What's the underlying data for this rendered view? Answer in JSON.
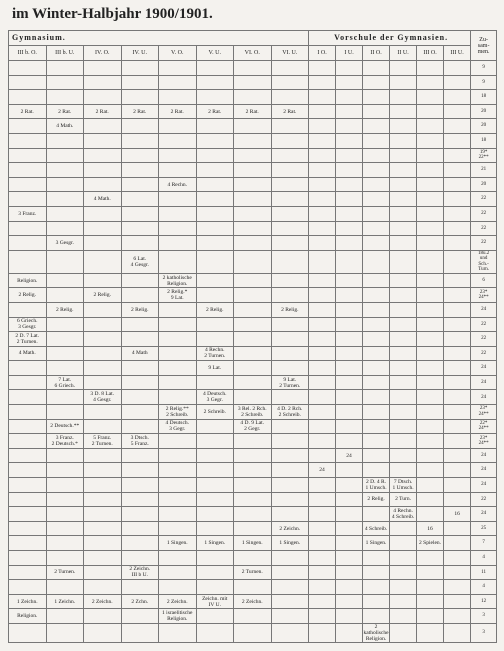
{
  "header": {
    "title": "im Winter-Halbjahr 1900/1901."
  },
  "groups": {
    "gymnasium": "Gymnasium.",
    "vorschule": "Vorschule der Gymnasien.",
    "total": "Zu-\nsam-\nmen."
  },
  "columns": [
    "III b. O.",
    "III b. U.",
    "IV. O.",
    "IV. U.",
    "V. O.",
    "V. U.",
    "VI. O.",
    "VI. U.",
    "I O.",
    "I U.",
    "II O.",
    "II U.",
    "III O.",
    "III U."
  ],
  "rows": [
    {
      "cells": [
        null,
        null,
        null,
        null,
        null,
        null,
        null,
        null,
        null,
        null,
        null,
        null,
        null,
        null
      ],
      "total": "9"
    },
    {
      "cells": [
        null,
        null,
        null,
        null,
        null,
        null,
        null,
        null,
        null,
        null,
        null,
        null,
        null,
        null
      ],
      "total": "9"
    },
    {
      "cells": [
        null,
        null,
        null,
        null,
        null,
        null,
        null,
        null,
        null,
        null,
        null,
        null,
        null,
        null
      ],
      "total": "18"
    },
    {
      "cells": [
        "2 Rat.",
        "2 Rat.",
        "2 Rat.",
        "2 Rat.",
        "2 Rat.",
        "2 Rat.",
        "2 Rat.",
        "2 Rat.",
        null,
        null,
        null,
        null,
        null,
        null
      ],
      "total": "20"
    },
    {
      "cells": [
        null,
        "4 Math.",
        null,
        null,
        null,
        null,
        null,
        null,
        null,
        null,
        null,
        null,
        null,
        null
      ],
      "total": "20"
    },
    {
      "cells": [
        null,
        null,
        null,
        null,
        null,
        null,
        null,
        null,
        null,
        null,
        null,
        null,
        null,
        null
      ],
      "total": "18"
    },
    {
      "cells": [
        null,
        null,
        null,
        null,
        null,
        null,
        null,
        null,
        null,
        null,
        null,
        null,
        null,
        null
      ],
      "total": "19*\n22**"
    },
    {
      "cells": [
        null,
        null,
        null,
        null,
        null,
        null,
        null,
        null,
        null,
        null,
        null,
        null,
        null,
        null
      ],
      "total": "21"
    },
    {
      "cells": [
        null,
        null,
        null,
        null,
        "4 Rechn.",
        null,
        null,
        null,
        null,
        null,
        null,
        null,
        null,
        null
      ],
      "total": "20"
    },
    {
      "cells": [
        null,
        null,
        "4 Math.",
        null,
        null,
        null,
        null,
        null,
        null,
        null,
        null,
        null,
        null,
        null
      ],
      "total": "22"
    },
    {
      "cells": [
        "3 Franz.",
        null,
        null,
        null,
        null,
        null,
        null,
        null,
        null,
        null,
        null,
        null,
        null,
        null
      ],
      "total": "22"
    },
    {
      "cells": [
        null,
        null,
        null,
        null,
        null,
        null,
        null,
        null,
        null,
        null,
        null,
        null,
        null,
        null
      ],
      "total": "22"
    },
    {
      "cells": [
        null,
        "3 Gesgr.",
        null,
        null,
        null,
        null,
        null,
        null,
        null,
        null,
        null,
        null,
        null,
        null
      ],
      "total": "22"
    },
    {
      "cells": [
        null,
        null,
        null,
        "6 Lat.\n4 Gesgr.",
        null,
        null,
        null,
        null,
        null,
        null,
        null,
        null,
        null,
        null
      ],
      "total": "18u.2\nund\nSch.-\nTurn."
    },
    {
      "cells": [
        "Religion.",
        null,
        null,
        null,
        "2 katholische Religion.",
        null,
        null,
        null,
        null,
        null,
        null,
        null,
        null,
        null
      ],
      "total": "6"
    },
    {
      "cells": [
        "2 Relig.",
        null,
        "2 Relig.",
        null,
        "2 Relig.*\n9 Lat.",
        null,
        null,
        null,
        null,
        null,
        null,
        null,
        null,
        null
      ],
      "total": "23*\n24**"
    },
    {
      "cells": [
        null,
        "2 Relig.",
        null,
        "2 Relig.",
        null,
        "2 Relig.",
        null,
        "2 Relig.",
        null,
        null,
        null,
        null,
        null,
        null
      ],
      "total": "24"
    },
    {
      "cells": [
        "6 Griech.\n3 Gesgr.",
        null,
        null,
        null,
        null,
        null,
        null,
        null,
        null,
        null,
        null,
        null,
        null,
        null
      ],
      "total": "22"
    },
    {
      "cells": [
        "2 D. 7 Lat.\n2 Turnen.",
        null,
        null,
        null,
        null,
        null,
        null,
        null,
        null,
        null,
        null,
        null,
        null,
        null
      ],
      "total": "22"
    },
    {
      "cells": [
        "4 Math.",
        null,
        null,
        "4 Math",
        null,
        "4 Rechn.\n2 Turnen.",
        null,
        null,
        null,
        null,
        null,
        null,
        null,
        null
      ],
      "total": "22"
    },
    {
      "cells": [
        null,
        null,
        null,
        null,
        null,
        "9 Lat.",
        null,
        null,
        null,
        null,
        null,
        null,
        null,
        null
      ],
      "total": "24"
    },
    {
      "cells": [
        null,
        "7 Lat.\n6 Griech.",
        null,
        null,
        null,
        null,
        null,
        "9 Lat.\n2 Turnen.",
        null,
        null,
        null,
        null,
        null,
        null
      ],
      "total": "24"
    },
    {
      "cells": [
        null,
        null,
        "3 D. 8 Lat.\n4 Gesgr.",
        null,
        null,
        "4 Deutsch.\n3 Gegr.",
        null,
        null,
        null,
        null,
        null,
        null,
        null,
        null
      ],
      "total": "24"
    },
    {
      "cells": [
        null,
        null,
        null,
        null,
        "2 Relig.**\n2 Schreib.",
        "2 Schreib.",
        "3 Rel. 2 Rch.\n2 Schreib.",
        "4 D. 2 Rch.\n2 Schreib.",
        null,
        null,
        null,
        null,
        null,
        null
      ],
      "total": "23*\n24**"
    },
    {
      "cells": [
        null,
        "2 Deutsch.**",
        null,
        null,
        "4 Deutsch.\n3 Gegr.",
        null,
        "4 D. 9 Lat.\n2 Gegr.",
        null,
        null,
        null,
        null,
        null,
        null,
        null
      ],
      "total": "22*\n24**"
    },
    {
      "cells": [
        null,
        "3 Franz.\n2 Deutsch.*",
        "5 Franz.\n2 Turnen.",
        "3 Dtsch.\n5 Franz.",
        null,
        null,
        null,
        null,
        null,
        null,
        null,
        null,
        null,
        null
      ],
      "total": "23*\n24**"
    },
    {
      "cells": [
        null,
        null,
        null,
        null,
        null,
        null,
        null,
        null,
        null,
        "24",
        null,
        null,
        null,
        null
      ],
      "total": "24"
    },
    {
      "cells": [
        null,
        null,
        null,
        null,
        null,
        null,
        null,
        null,
        "24",
        null,
        null,
        null,
        null,
        null
      ],
      "total": "24"
    },
    {
      "cells": [
        null,
        null,
        null,
        null,
        null,
        null,
        null,
        null,
        null,
        null,
        "2 D. 4 R.\n1 Umsch.",
        "7 Dtsch.\n1 Umsch.",
        null,
        null
      ],
      "total": "24"
    },
    {
      "cells": [
        null,
        null,
        null,
        null,
        null,
        null,
        null,
        null,
        null,
        null,
        "2 Relig.",
        "2 Turn.",
        null,
        null
      ],
      "total": "22"
    },
    {
      "cells": [
        null,
        null,
        null,
        null,
        null,
        null,
        null,
        null,
        null,
        null,
        null,
        "4 Rechn.\n4 Schreib.",
        null,
        "16"
      ],
      "total": "24"
    },
    {
      "cells": [
        null,
        null,
        null,
        null,
        null,
        null,
        null,
        "2 Zeichn.",
        null,
        null,
        "4 Schreib.",
        null,
        "16",
        null
      ],
      "total": "25"
    },
    {
      "cells": [
        null,
        null,
        null,
        null,
        "1 Singen.",
        "1 Singen.",
        "1 Singen.",
        "1 Singen.",
        null,
        null,
        "1 Singen.",
        null,
        "2 Spielen.",
        null
      ],
      "total": "7"
    },
    {
      "cells": [
        null,
        null,
        null,
        null,
        null,
        null,
        null,
        null,
        null,
        null,
        null,
        null,
        null,
        null
      ],
      "total": "4"
    },
    {
      "cells": [
        null,
        "2 Turnen.",
        null,
        "2 Zeichn.\nIII b U.",
        null,
        null,
        "2 Turnen.",
        null,
        null,
        null,
        null,
        null,
        null,
        null
      ],
      "total": "11"
    },
    {
      "cells": [
        null,
        null,
        null,
        null,
        null,
        null,
        null,
        null,
        null,
        null,
        null,
        null,
        null,
        null
      ],
      "total": "4"
    },
    {
      "cells": [
        "1 Zeichn.",
        "1 Zeichn.",
        "2 Zeichn.",
        "2 Zchn.",
        "2 Zeichn.",
        "Zeichn. mit\nIV U.",
        "2 Zeichn.",
        null,
        null,
        null,
        null,
        null,
        null,
        null
      ],
      "total": "12"
    },
    {
      "cells": [
        "Religion.",
        null,
        null,
        null,
        "1 israelitische Religion.",
        null,
        null,
        null,
        null,
        null,
        null,
        null,
        null,
        null
      ],
      "total": "3"
    },
    {
      "cells": [
        null,
        null,
        null,
        null,
        null,
        null,
        null,
        null,
        null,
        null,
        "2 katholische Religion.",
        null,
        null,
        null
      ],
      "total": "3"
    }
  ]
}
